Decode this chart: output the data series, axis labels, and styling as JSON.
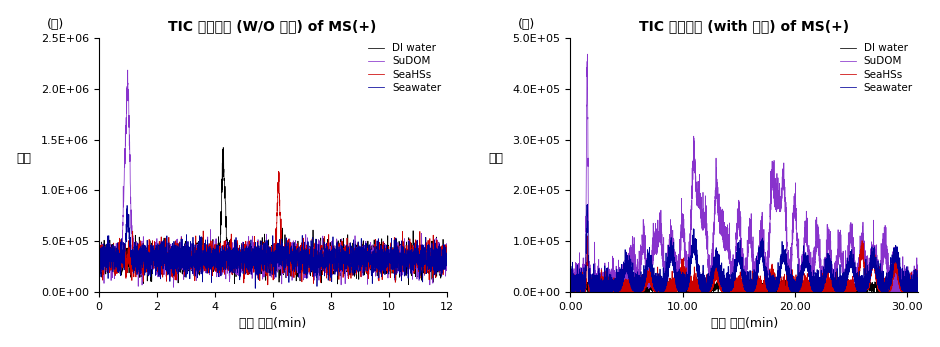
{
  "title_left": "TIC 스펙트럼 (W/O 콜럼) of MS(+)",
  "title_right": "TIC 스펙트럼 (with 콜럼) of MS(+)",
  "label_left": "(가)",
  "label_right": "(나)",
  "ylabel": "강도",
  "xlabel": "체류 시간(min)",
  "legend_entries": [
    "DI water",
    "SuDOM",
    "SeaHSs",
    "Seawater"
  ],
  "colors": [
    "#000000",
    "#8833cc",
    "#cc0000",
    "#000099"
  ],
  "left_xlim": [
    0,
    12
  ],
  "left_ylim": [
    0,
    2500000.0
  ],
  "left_yticks": [
    0,
    500000.0,
    1000000.0,
    1500000.0,
    2000000.0,
    2500000.0
  ],
  "left_xticks": [
    0,
    2,
    4,
    6,
    8,
    10,
    12
  ],
  "right_xlim": [
    0,
    31
  ],
  "right_ylim": [
    0,
    500000.0
  ],
  "right_yticks": [
    0,
    100000.0,
    200000.0,
    300000.0,
    400000.0,
    500000.0
  ],
  "right_xticks": [
    0.0,
    10.0,
    20.0,
    30.0
  ],
  "seed": 7
}
